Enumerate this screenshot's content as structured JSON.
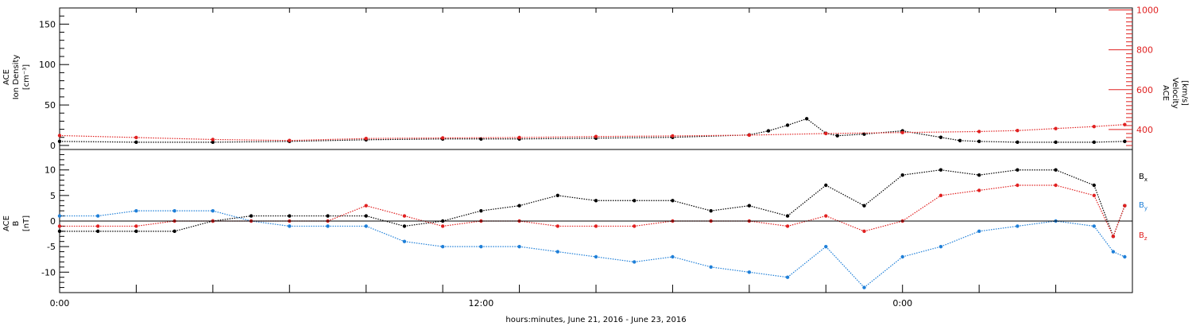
{
  "chart_data": [
    {
      "type": "scatter",
      "panel": "top",
      "ylabel_lines": [
        "ACE",
        "Ion Density",
        "[cm⁻³]"
      ],
      "y2label_lines": [
        "ACE",
        "Velocity",
        "[km/s]"
      ],
      "ylim": [
        -5,
        170
      ],
      "y2lim": [
        300,
        1010
      ],
      "yticks": [
        0,
        50,
        100,
        150
      ],
      "y2ticks": [
        400,
        600,
        800,
        1000
      ],
      "grid": false,
      "series": [
        {
          "key": "density",
          "axis": "left",
          "color": "#000000",
          "x": [
            0,
            2,
            4,
            6,
            8,
            10,
            11,
            12,
            14,
            16,
            18,
            18.5,
            19,
            19.5,
            20,
            20.3,
            21,
            22,
            23,
            23.5,
            24,
            25,
            26,
            27,
            27.8
          ],
          "values": [
            5,
            4,
            4,
            5,
            7,
            8,
            8,
            8,
            9,
            10,
            13,
            18,
            25,
            33,
            15,
            12,
            14,
            18,
            10,
            6,
            5,
            4,
            4,
            4,
            5
          ]
        },
        {
          "key": "velocity",
          "axis": "right",
          "color": "#e02020",
          "x": [
            0,
            2,
            4,
            6,
            8,
            10,
            12,
            14,
            16,
            18,
            20,
            22,
            24,
            25,
            26,
            27,
            27.8
          ],
          "values": [
            370,
            360,
            350,
            345,
            355,
            358,
            360,
            365,
            368,
            372,
            380,
            385,
            390,
            395,
            405,
            415,
            425
          ]
        }
      ]
    },
    {
      "type": "scatter",
      "panel": "bottom",
      "ylabel_lines": [
        "ACE",
        "B",
        "[nT]"
      ],
      "ylim": [
        -14,
        14
      ],
      "yticks": [
        -10,
        -5,
        0,
        5,
        10
      ],
      "zero_line": true,
      "grid": false,
      "series": [
        {
          "name": "Bx",
          "label": "B",
          "sub": "x",
          "color": "#000000",
          "x": [
            0,
            1,
            2,
            3,
            4,
            5,
            6,
            7,
            8,
            9,
            10,
            11,
            12,
            13,
            14,
            15,
            16,
            17,
            18,
            19,
            20,
            21,
            22,
            23,
            24,
            25,
            26,
            27,
            27.5,
            27.8
          ],
          "values": [
            -2,
            -2,
            -2,
            -2,
            0,
            1,
            1,
            1,
            1,
            -1,
            0,
            2,
            3,
            5,
            4,
            4,
            4,
            2,
            3,
            1,
            7,
            3,
            9,
            10,
            9,
            10,
            10,
            7,
            -3,
            3
          ]
        },
        {
          "name": "By",
          "label": "B",
          "sub": "y",
          "color": "#1e7fd8",
          "x": [
            0,
            1,
            2,
            3,
            4,
            5,
            6,
            7,
            8,
            9,
            10,
            11,
            12,
            13,
            14,
            15,
            16,
            17,
            18,
            19,
            20,
            21,
            22,
            23,
            24,
            25,
            26,
            27,
            27.5,
            27.8
          ],
          "values": [
            1,
            1,
            2,
            2,
            2,
            0,
            -1,
            -1,
            -1,
            -4,
            -5,
            -5,
            -5,
            -6,
            -7,
            -8,
            -7,
            -9,
            -10,
            -11,
            -5,
            -13,
            -7,
            -5,
            -2,
            -1,
            0,
            -1,
            -6,
            -7
          ]
        },
        {
          "name": "Bz",
          "label": "B",
          "sub": "z",
          "color": "#e02020",
          "x": [
            0,
            1,
            2,
            3,
            4,
            5,
            6,
            7,
            8,
            9,
            10,
            11,
            12,
            13,
            14,
            15,
            16,
            17,
            18,
            19,
            20,
            21,
            22,
            23,
            24,
            25,
            26,
            27,
            27.5,
            27.8
          ],
          "values": [
            -1,
            -1,
            -1,
            0,
            0,
            0,
            0,
            0,
            3,
            1,
            -1,
            0,
            0,
            -1,
            -1,
            -1,
            0,
            0,
            0,
            -1,
            1,
            -2,
            0,
            5,
            6,
            7,
            7,
            5,
            -3,
            3
          ]
        }
      ]
    }
  ],
  "x_axis": {
    "range": [
      0,
      28
    ],
    "tick_labels": [
      {
        "x": 0,
        "label": "0:00"
      },
      {
        "x": 11,
        "label": "12:00"
      },
      {
        "x": 22,
        "label": "0:00"
      }
    ],
    "title": "hours:minutes, June 21, 2016 - June 23, 2016"
  }
}
